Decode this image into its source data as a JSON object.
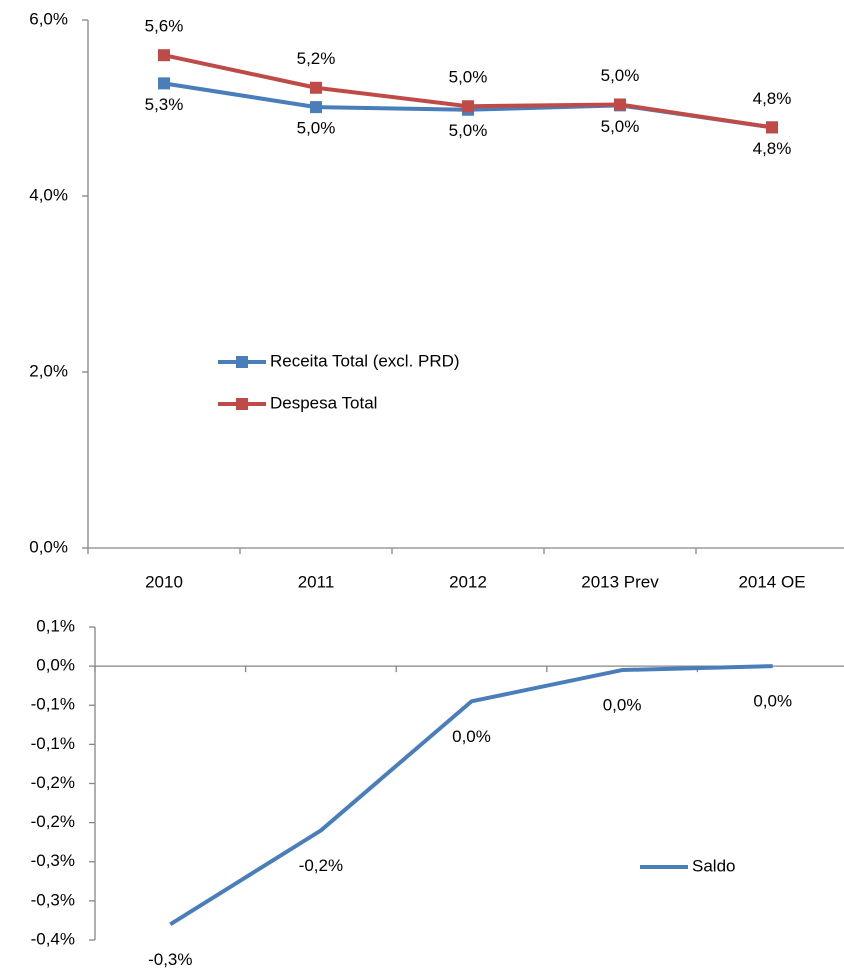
{
  "chart_data": [
    {
      "type": "line",
      "categories": [
        "2010",
        "2011",
        "2012",
        "2013 Prev",
        "2014 OE"
      ],
      "ylim": [
        0,
        6
      ],
      "yticks": [
        {
          "value": 0,
          "label": "0,0%"
        },
        {
          "value": 2,
          "label": "2,0%"
        },
        {
          "value": 4,
          "label": "4,0%"
        },
        {
          "value": 6,
          "label": "6,0%"
        }
      ],
      "legend": "center",
      "series": [
        {
          "name": "Receita Total (excl. PRD)",
          "color": "#4a7ebb",
          "values": [
            5.28,
            5.01,
            4.98,
            5.03,
            4.78
          ],
          "value_labels": [
            "5,3%",
            "5,0%",
            "5,0%",
            "5,0%",
            "4,8%"
          ]
        },
        {
          "name": "Despesa Total",
          "color": "#be4b48",
          "values": [
            5.6,
            5.23,
            5.02,
            5.04,
            4.78
          ],
          "value_labels": [
            "5,6%",
            "5,2%",
            "5,0%",
            "5,0%",
            "4,8%"
          ]
        }
      ]
    },
    {
      "type": "line",
      "categories": [
        null,
        null,
        null,
        null,
        null
      ],
      "ylim": [
        -0.35,
        0.05
      ],
      "yticks": [
        {
          "value": 0.05,
          "label": "0,1%"
        },
        {
          "value": 0,
          "label": "0,0%"
        },
        {
          "value": -0.05,
          "label": "-0,1%"
        },
        {
          "value": -0.1,
          "label": "-0,1%"
        },
        {
          "value": -0.15,
          "label": "-0,2%"
        },
        {
          "value": -0.2,
          "label": "-0,2%"
        },
        {
          "value": -0.25,
          "label": "-0,3%"
        },
        {
          "value": -0.3,
          "label": "-0,3%"
        },
        {
          "value": -0.35,
          "label": "-0,4%"
        }
      ],
      "legend": "lower right",
      "series": [
        {
          "name": "Saldo",
          "color": "#4a7ebb",
          "values": [
            -0.33,
            -0.21,
            -0.045,
            -0.005,
            0
          ],
          "value_labels": [
            "-0,3%",
            "-0,2%",
            "0,0%",
            "0,0%",
            "0,0%"
          ]
        }
      ]
    }
  ]
}
